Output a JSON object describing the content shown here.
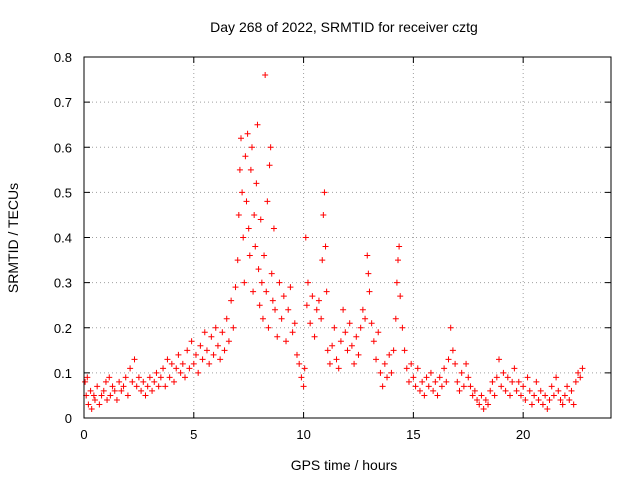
{
  "chart_data": {
    "type": "scatter",
    "title": "Day 268 of 2022, SRMTID for receiver cztg",
    "xlabel": "GPS time / hours",
    "ylabel": "SRMTID / TECUs",
    "xlim": [
      0,
      24
    ],
    "ylim": [
      0,
      0.8
    ],
    "x_ticks": [
      0,
      5,
      10,
      15,
      20
    ],
    "x_tick_labels": [
      "0",
      "5",
      "10",
      "15",
      "20"
    ],
    "y_ticks": [
      0,
      0.1,
      0.2,
      0.3,
      0.4,
      0.5,
      0.6,
      0.7,
      0.8
    ],
    "y_tick_labels": [
      "0",
      "0.1",
      "0.2",
      "0.3",
      "0.4",
      "0.5",
      "0.6",
      "0.7",
      "0.8"
    ],
    "grid": true,
    "marker": "plus",
    "color": "#ff0000",
    "series": [
      {
        "name": "SRMTID",
        "points": [
          [
            0.05,
            0.08
          ],
          [
            0.1,
            0.05
          ],
          [
            0.15,
            0.09
          ],
          [
            0.2,
            0.03
          ],
          [
            0.3,
            0.06
          ],
          [
            0.35,
            0.02
          ],
          [
            0.45,
            0.05
          ],
          [
            0.5,
            0.04
          ],
          [
            0.6,
            0.07
          ],
          [
            0.7,
            0.03
          ],
          [
            0.8,
            0.05
          ],
          [
            0.9,
            0.06
          ],
          [
            1.0,
            0.08
          ],
          [
            1.05,
            0.04
          ],
          [
            1.15,
            0.09
          ],
          [
            1.2,
            0.05
          ],
          [
            1.3,
            0.07
          ],
          [
            1.4,
            0.06
          ],
          [
            1.5,
            0.04
          ],
          [
            1.6,
            0.08
          ],
          [
            1.7,
            0.06
          ],
          [
            1.8,
            0.07
          ],
          [
            1.9,
            0.09
          ],
          [
            2.0,
            0.05
          ],
          [
            2.1,
            0.11
          ],
          [
            2.2,
            0.08
          ],
          [
            2.3,
            0.13
          ],
          [
            2.4,
            0.07
          ],
          [
            2.5,
            0.09
          ],
          [
            2.6,
            0.06
          ],
          [
            2.7,
            0.08
          ],
          [
            2.8,
            0.05
          ],
          [
            2.9,
            0.07
          ],
          [
            3.0,
            0.09
          ],
          [
            3.1,
            0.06
          ],
          [
            3.2,
            0.08
          ],
          [
            3.3,
            0.1
          ],
          [
            3.4,
            0.07
          ],
          [
            3.5,
            0.09
          ],
          [
            3.6,
            0.11
          ],
          [
            3.7,
            0.07
          ],
          [
            3.8,
            0.13
          ],
          [
            3.9,
            0.09
          ],
          [
            4.0,
            0.12
          ],
          [
            4.1,
            0.08
          ],
          [
            4.2,
            0.11
          ],
          [
            4.3,
            0.14
          ],
          [
            4.4,
            0.1
          ],
          [
            4.5,
            0.12
          ],
          [
            4.6,
            0.09
          ],
          [
            4.7,
            0.15
          ],
          [
            4.8,
            0.11
          ],
          [
            4.9,
            0.17
          ],
          [
            5.0,
            0.12
          ],
          [
            5.1,
            0.14
          ],
          [
            5.2,
            0.1
          ],
          [
            5.3,
            0.16
          ],
          [
            5.4,
            0.13
          ],
          [
            5.5,
            0.19
          ],
          [
            5.6,
            0.15
          ],
          [
            5.7,
            0.12
          ],
          [
            5.8,
            0.18
          ],
          [
            5.9,
            0.14
          ],
          [
            6.0,
            0.2
          ],
          [
            6.1,
            0.16
          ],
          [
            6.2,
            0.13
          ],
          [
            6.3,
            0.19
          ],
          [
            6.4,
            0.15
          ],
          [
            6.5,
            0.22
          ],
          [
            6.6,
            0.17
          ],
          [
            6.7,
            0.26
          ],
          [
            6.8,
            0.2
          ],
          [
            6.9,
            0.29
          ],
          [
            7.0,
            0.35
          ],
          [
            7.05,
            0.45
          ],
          [
            7.1,
            0.55
          ],
          [
            7.15,
            0.62
          ],
          [
            7.2,
            0.5
          ],
          [
            7.25,
            0.4
          ],
          [
            7.3,
            0.3
          ],
          [
            7.35,
            0.58
          ],
          [
            7.4,
            0.48
          ],
          [
            7.45,
            0.63
          ],
          [
            7.5,
            0.42
          ],
          [
            7.55,
            0.36
          ],
          [
            7.6,
            0.55
          ],
          [
            7.65,
            0.6
          ],
          [
            7.7,
            0.28
          ],
          [
            7.75,
            0.45
          ],
          [
            7.8,
            0.38
          ],
          [
            7.85,
            0.52
          ],
          [
            7.9,
            0.65
          ],
          [
            7.95,
            0.33
          ],
          [
            8.0,
            0.25
          ],
          [
            8.05,
            0.44
          ],
          [
            8.1,
            0.3
          ],
          [
            8.15,
            0.22
          ],
          [
            8.2,
            0.36
          ],
          [
            8.25,
            0.76
          ],
          [
            8.3,
            0.28
          ],
          [
            8.35,
            0.48
          ],
          [
            8.4,
            0.2
          ],
          [
            8.45,
            0.56
          ],
          [
            8.5,
            0.6
          ],
          [
            8.55,
            0.32
          ],
          [
            8.6,
            0.26
          ],
          [
            8.65,
            0.42
          ],
          [
            8.7,
            0.24
          ],
          [
            8.8,
            0.18
          ],
          [
            8.9,
            0.3
          ],
          [
            9.0,
            0.22
          ],
          [
            9.1,
            0.27
          ],
          [
            9.2,
            0.17
          ],
          [
            9.3,
            0.24
          ],
          [
            9.4,
            0.29
          ],
          [
            9.5,
            0.19
          ],
          [
            9.6,
            0.21
          ],
          [
            9.7,
            0.14
          ],
          [
            9.8,
            0.12
          ],
          [
            9.9,
            0.09
          ],
          [
            10.0,
            0.07
          ],
          [
            10.05,
            0.11
          ],
          [
            10.1,
            0.4
          ],
          [
            10.15,
            0.25
          ],
          [
            10.2,
            0.3
          ],
          [
            10.3,
            0.21
          ],
          [
            10.4,
            0.27
          ],
          [
            10.5,
            0.18
          ],
          [
            10.6,
            0.24
          ],
          [
            10.7,
            0.26
          ],
          [
            10.8,
            0.22
          ],
          [
            10.85,
            0.35
          ],
          [
            10.9,
            0.45
          ],
          [
            10.95,
            0.5
          ],
          [
            11.0,
            0.38
          ],
          [
            11.05,
            0.28
          ],
          [
            11.1,
            0.15
          ],
          [
            11.2,
            0.12
          ],
          [
            11.3,
            0.16
          ],
          [
            11.4,
            0.2
          ],
          [
            11.5,
            0.13
          ],
          [
            11.6,
            0.11
          ],
          [
            11.7,
            0.17
          ],
          [
            11.8,
            0.24
          ],
          [
            11.9,
            0.19
          ],
          [
            12.0,
            0.15
          ],
          [
            12.1,
            0.21
          ],
          [
            12.2,
            0.16
          ],
          [
            12.3,
            0.12
          ],
          [
            12.4,
            0.18
          ],
          [
            12.5,
            0.14
          ],
          [
            12.6,
            0.2
          ],
          [
            12.7,
            0.24
          ],
          [
            12.8,
            0.22
          ],
          [
            12.9,
            0.36
          ],
          [
            12.95,
            0.32
          ],
          [
            13.0,
            0.28
          ],
          [
            13.1,
            0.21
          ],
          [
            13.2,
            0.17
          ],
          [
            13.3,
            0.13
          ],
          [
            13.4,
            0.19
          ],
          [
            13.5,
            0.1
          ],
          [
            13.6,
            0.07
          ],
          [
            13.7,
            0.12
          ],
          [
            13.8,
            0.09
          ],
          [
            13.9,
            0.14
          ],
          [
            14.0,
            0.1
          ],
          [
            14.1,
            0.15
          ],
          [
            14.2,
            0.22
          ],
          [
            14.25,
            0.3
          ],
          [
            14.3,
            0.35
          ],
          [
            14.35,
            0.38
          ],
          [
            14.4,
            0.27
          ],
          [
            14.5,
            0.2
          ],
          [
            14.6,
            0.15
          ],
          [
            14.7,
            0.11
          ],
          [
            14.8,
            0.08
          ],
          [
            14.9,
            0.12
          ],
          [
            15.0,
            0.09
          ],
          [
            15.1,
            0.07
          ],
          [
            15.2,
            0.11
          ],
          [
            15.3,
            0.06
          ],
          [
            15.4,
            0.08
          ],
          [
            15.5,
            0.05
          ],
          [
            15.6,
            0.09
          ],
          [
            15.7,
            0.07
          ],
          [
            15.8,
            0.1
          ],
          [
            15.9,
            0.06
          ],
          [
            16.0,
            0.08
          ],
          [
            16.1,
            0.05
          ],
          [
            16.2,
            0.09
          ],
          [
            16.3,
            0.07
          ],
          [
            16.4,
            0.11
          ],
          [
            16.5,
            0.08
          ],
          [
            16.6,
            0.13
          ],
          [
            16.7,
            0.2
          ],
          [
            16.8,
            0.15
          ],
          [
            16.9,
            0.12
          ],
          [
            17.0,
            0.08
          ],
          [
            17.1,
            0.06
          ],
          [
            17.2,
            0.1
          ],
          [
            17.3,
            0.07
          ],
          [
            17.4,
            0.12
          ],
          [
            17.5,
            0.09
          ],
          [
            17.6,
            0.07
          ],
          [
            17.7,
            0.05
          ],
          [
            17.8,
            0.06
          ],
          [
            17.9,
            0.04
          ],
          [
            18.0,
            0.03
          ],
          [
            18.1,
            0.05
          ],
          [
            18.2,
            0.02
          ],
          [
            18.3,
            0.04
          ],
          [
            18.4,
            0.03
          ],
          [
            18.5,
            0.06
          ],
          [
            18.6,
            0.08
          ],
          [
            18.7,
            0.05
          ],
          [
            18.8,
            0.09
          ],
          [
            18.9,
            0.13
          ],
          [
            19.0,
            0.07
          ],
          [
            19.1,
            0.1
          ],
          [
            19.2,
            0.06
          ],
          [
            19.3,
            0.09
          ],
          [
            19.4,
            0.05
          ],
          [
            19.5,
            0.08
          ],
          [
            19.6,
            0.11
          ],
          [
            19.7,
            0.06
          ],
          [
            19.8,
            0.08
          ],
          [
            19.9,
            0.05
          ],
          [
            20.0,
            0.07
          ],
          [
            20.1,
            0.04
          ],
          [
            20.2,
            0.09
          ],
          [
            20.3,
            0.06
          ],
          [
            20.4,
            0.03
          ],
          [
            20.5,
            0.05
          ],
          [
            20.6,
            0.08
          ],
          [
            20.7,
            0.04
          ],
          [
            20.8,
            0.06
          ],
          [
            20.9,
            0.03
          ],
          [
            21.0,
            0.05
          ],
          [
            21.1,
            0.02
          ],
          [
            21.2,
            0.04
          ],
          [
            21.3,
            0.07
          ],
          [
            21.4,
            0.05
          ],
          [
            21.5,
            0.09
          ],
          [
            21.6,
            0.06
          ],
          [
            21.7,
            0.04
          ],
          [
            21.8,
            0.03
          ],
          [
            21.9,
            0.05
          ],
          [
            22.0,
            0.07
          ],
          [
            22.1,
            0.04
          ],
          [
            22.2,
            0.06
          ],
          [
            22.3,
            0.03
          ],
          [
            22.4,
            0.08
          ],
          [
            22.5,
            0.1
          ],
          [
            22.6,
            0.09
          ],
          [
            22.7,
            0.11
          ]
        ]
      }
    ]
  }
}
